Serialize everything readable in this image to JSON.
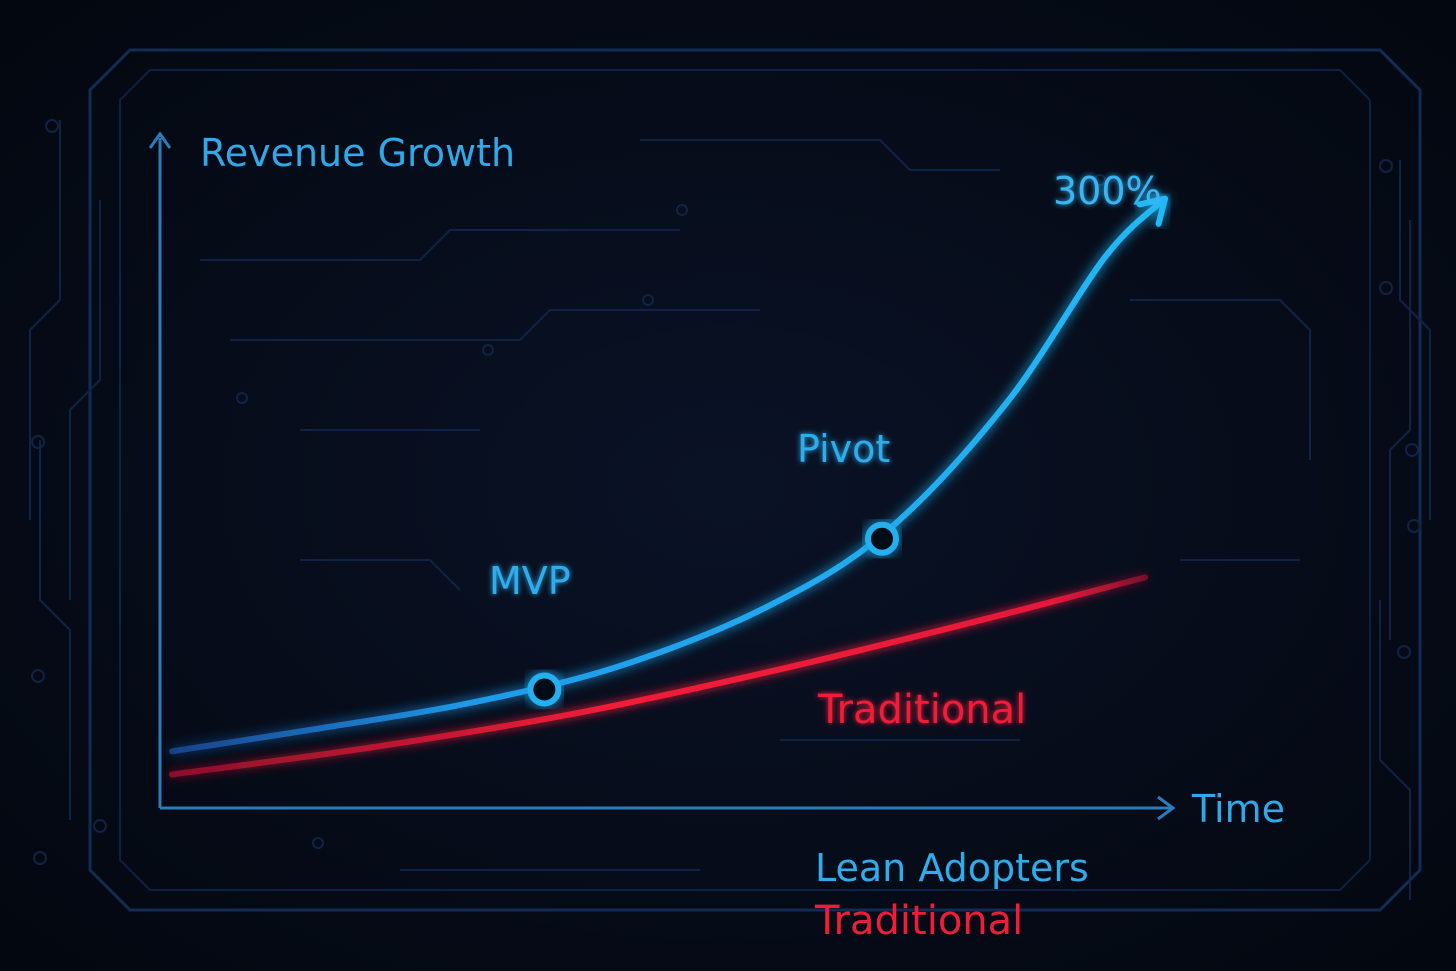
{
  "chart_data": {
    "type": "line",
    "ylabel": "Revenue Growth",
    "xlabel": "Time",
    "colors": {
      "lean": "#1fb0f2",
      "traditional": "#ef1b36",
      "axis": "#2a79b8",
      "background": "#050b18"
    },
    "series": [
      {
        "name": "Lean Adopters",
        "color": "#1fb0f2",
        "points": [
          [
            0,
            14
          ],
          [
            15,
            26
          ],
          [
            30,
            39
          ],
          [
            45,
            58
          ],
          [
            60,
            89
          ],
          [
            72,
            128
          ],
          [
            84,
            194
          ],
          [
            94,
            270
          ],
          [
            100,
            300
          ]
        ]
      },
      {
        "name": "Traditional",
        "color": "#ef1b36",
        "points": [
          [
            0,
            2
          ],
          [
            20,
            16
          ],
          [
            40,
            33
          ],
          [
            60,
            55
          ],
          [
            80,
            80
          ],
          [
            98,
            104
          ]
        ]
      }
    ],
    "xlim": [
      0,
      100
    ],
    "ylim": [
      -6,
      320
    ],
    "annotations": {
      "mvp": {
        "x": 37.5,
        "y": 46,
        "text": "MVP"
      },
      "pivot": {
        "x": 71.5,
        "y": 124,
        "text": "Pivot"
      },
      "end_value": {
        "x": 96.5,
        "y": 300,
        "text": "300%"
      },
      "traditional": {
        "text": "Traditional"
      }
    },
    "legend": {
      "placement": "bottom-center",
      "entries": [
        "Lean Adopters",
        "Traditional"
      ]
    }
  }
}
